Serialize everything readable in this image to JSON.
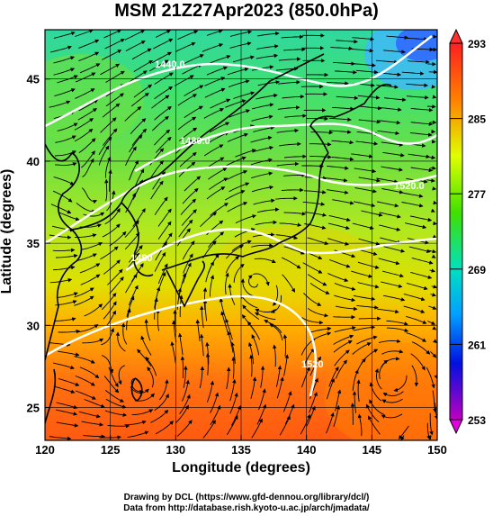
{
  "title": "MSM 21Z27Apr2023 (850.0hPa)",
  "axes": {
    "xlabel": "Longitude (degrees)",
    "ylabel": "Latitude  (degrees)",
    "xticks": [
      "120",
      "125",
      "130",
      "135",
      "140",
      "145",
      "150"
    ],
    "yticks": [
      "25",
      "30",
      "35",
      "40",
      "45"
    ]
  },
  "colorbar": {
    "ticks": [
      "293",
      "285",
      "277",
      "269",
      "261",
      "253"
    ]
  },
  "contours": [
    "1440.0",
    "1480.0",
    "1520.0",
    "1480",
    "1520"
  ],
  "credits": [
    "Drawing by DCL (https://www.gfd-dennou.org/library/dcl/)",
    "Data from http://database.rish.kyoto-u.ac.jp/arch/jmadata/"
  ],
  "chart_data": {
    "type": "heatmap",
    "variable": "temperature",
    "level": "850.0hPa",
    "xlim": [
      120,
      150
    ],
    "ylim": [
      23,
      48
    ],
    "clim": [
      253,
      293
    ],
    "colors": {
      "cold": "#3050ff",
      "cool": "#00e0c0",
      "mild": "#30d030",
      "warm": "#d8f000",
      "hot": "#ff6a10",
      "max": "#ff3030",
      "min": "#e000e0",
      "coast": "#000000",
      "contour": "#ffffff"
    }
  }
}
